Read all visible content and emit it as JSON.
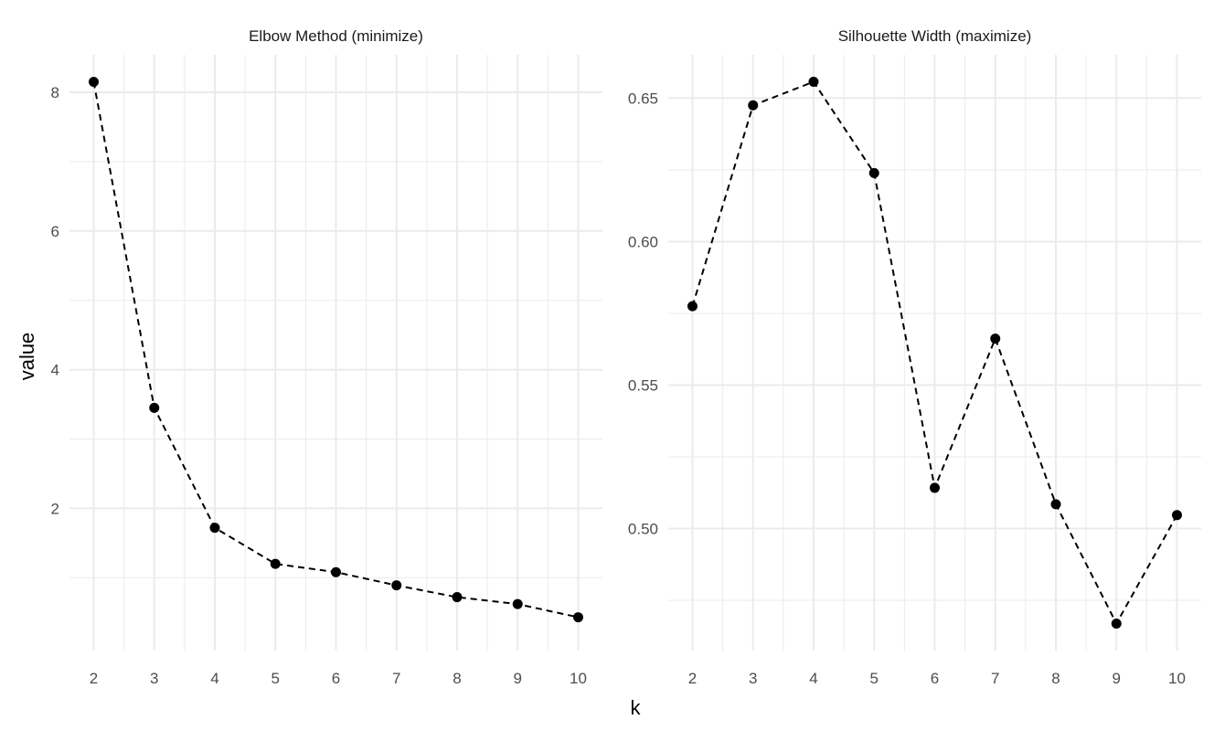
{
  "chart_data": [
    {
      "type": "line",
      "title": "Elbow Method (minimize)",
      "xlabel": "k",
      "ylabel": "value",
      "x": [
        2,
        3,
        4,
        5,
        6,
        7,
        8,
        9,
        10
      ],
      "values": [
        8.15,
        3.45,
        1.72,
        1.2,
        1.08,
        0.89,
        0.72,
        0.62,
        0.43
      ],
      "ylim": [
        -0.05,
        8.54
      ],
      "xlim": [
        1.6,
        10.4
      ],
      "yticks": [
        2,
        4,
        6,
        8
      ],
      "ytick_labels": [
        "2",
        "4",
        "6",
        "8"
      ],
      "xticks": [
        2,
        3,
        4,
        5,
        6,
        7,
        8,
        9,
        10
      ],
      "xtick_labels": [
        "2",
        "3",
        "4",
        "5",
        "6",
        "7",
        "8",
        "9",
        "10"
      ],
      "line_style": "dashed",
      "grid": true
    },
    {
      "type": "line",
      "title": "Silhouette Width (maximize)",
      "xlabel": "k",
      "ylabel": "value",
      "x": [
        2,
        3,
        4,
        5,
        6,
        7,
        8,
        9,
        10
      ],
      "values": [
        0.5775,
        0.6475,
        0.6557,
        0.6239,
        0.5142,
        0.5662,
        0.5085,
        0.4669,
        0.5047
      ],
      "ylim": [
        0.4575,
        0.6651
      ],
      "xlim": [
        1.6,
        10.4
      ],
      "yticks": [
        0.5,
        0.55,
        0.6,
        0.65
      ],
      "ytick_labels": [
        "0.50",
        "0.55",
        "0.60",
        "0.65"
      ],
      "xticks": [
        2,
        3,
        4,
        5,
        6,
        7,
        8,
        9,
        10
      ],
      "xtick_labels": [
        "2",
        "3",
        "4",
        "5",
        "6",
        "7",
        "8",
        "9",
        "10"
      ],
      "line_style": "dashed",
      "grid": true
    }
  ],
  "shared": {
    "xlabel": "k",
    "ylabel": "value"
  }
}
